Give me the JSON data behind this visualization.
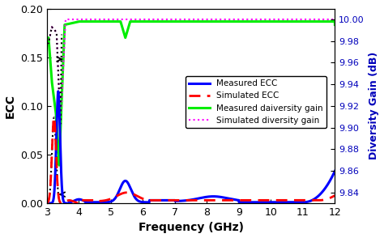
{
  "xlabel": "Frequency (GHz)",
  "ylabel_left": "ECC",
  "ylabel_right": "Diversity Gain (dB)",
  "xlim": [
    3,
    12
  ],
  "ylim_left": [
    0,
    0.2
  ],
  "ylim_right": [
    9.83,
    10.01
  ],
  "xticks": [
    3,
    4,
    5,
    6,
    7,
    8,
    9,
    10,
    11,
    12
  ],
  "yticks_left": [
    0,
    0.05,
    0.1,
    0.15,
    0.2
  ],
  "yticks_right": [
    9.84,
    9.86,
    9.88,
    9.9,
    9.92,
    9.94,
    9.96,
    9.98,
    10.0
  ],
  "legend_labels": [
    "Measured ECC",
    "Simulated ECC",
    "Measured daiversity gain",
    "Simulated diversity gain"
  ],
  "colors": {
    "measured_ecc": "#0000FF",
    "simulated_ecc": "#FF0000",
    "measured_dg": "#00EE00",
    "simulated_dg": "#FF00FF",
    "black_dotted": "#000000"
  },
  "dg_min": 9.83,
  "dg_max": 10.01,
  "ecc_max": 0.2,
  "figsize": [
    4.74,
    2.94
  ],
  "dpi": 100
}
